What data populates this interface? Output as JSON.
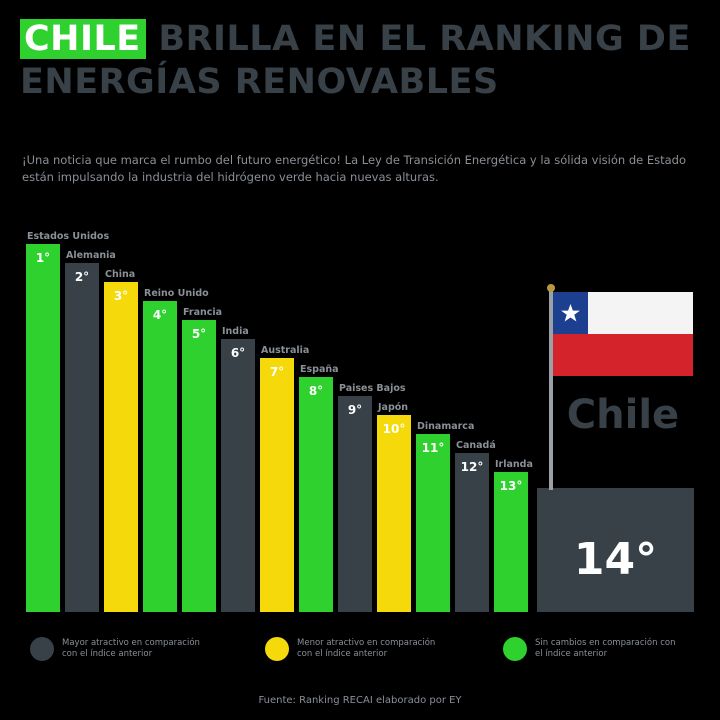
{
  "title": {
    "highlight": "CHILE",
    "rest": " BRILLA EN EL RANKING DE ENERGÍAS RENOVABLES"
  },
  "subtitle": "¡Una noticia que marca el rumbo del futuro energético! La Ley de Transición Energética y la sólida visión de Estado están impulsando la industria del hidrógeno verde hacia nuevas alturas.",
  "colors": {
    "green": "#2ed12e",
    "yellow": "#f5d90a",
    "gray": "#394148",
    "white": "#ffffff",
    "flag_blue": "#1d3f8f",
    "flag_red": "#d5232b"
  },
  "chart_data": {
    "type": "bar",
    "categories": [
      "Estados Unidos",
      "Alemania",
      "China",
      "Reino Unido",
      "Francia",
      "India",
      "Australia",
      "España",
      "Paises Bajos",
      "Japón",
      "Dinamarca",
      "Canadá",
      "Irlanda",
      "Chile"
    ],
    "ranks": [
      "1°",
      "2°",
      "3°",
      "4°",
      "5°",
      "6°",
      "7°",
      "8°",
      "9°",
      "10°",
      "11°",
      "12°",
      "13°",
      "14°"
    ],
    "status": [
      "green",
      "gray",
      "yellow",
      "green",
      "green",
      "gray",
      "yellow",
      "green",
      "gray",
      "yellow",
      "green",
      "gray",
      "green",
      "gray"
    ]
  },
  "chile_label": "Chile",
  "legend": [
    {
      "color": "gray",
      "text": "Mayor atractivo en comparación con el índice anterior"
    },
    {
      "color": "yellow",
      "text": "Menor atractivo en comparación con el índice anterior"
    },
    {
      "color": "green",
      "text": "Sin cambios en comparación con el índice anterior"
    }
  ],
  "source": "Fuente: Ranking RECAI elaborado por EY"
}
